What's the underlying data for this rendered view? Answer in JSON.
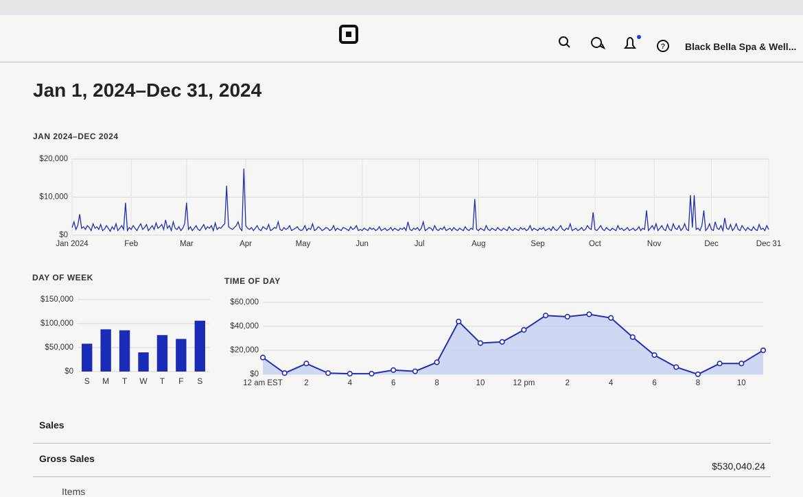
{
  "header": {
    "business": "Black Bella Spa & Well..."
  },
  "page_title": "Jan 1, 2024–Dec 31, 2024",
  "chart_data": [
    {
      "type": "line",
      "title": "JAN 2024–DEC 2024",
      "color": "#1f2fb0",
      "grid": true,
      "ylim": [
        0,
        20000
      ],
      "yticks": [
        {
          "value": 0,
          "label": "$0"
        },
        {
          "value": 10000,
          "label": "$10,000"
        },
        {
          "value": 20000,
          "label": "$20,000"
        }
      ],
      "categories": [
        "Jan 2024",
        null,
        null,
        null,
        null,
        null,
        null,
        null,
        null,
        null,
        null,
        null,
        null,
        null,
        null,
        null,
        null,
        null,
        null,
        null,
        null,
        null,
        null,
        null,
        null,
        null,
        null,
        null,
        null,
        null,
        null,
        "Feb",
        null,
        null,
        null,
        null,
        null,
        null,
        null,
        null,
        null,
        null,
        null,
        null,
        null,
        null,
        null,
        null,
        null,
        null,
        null,
        null,
        null,
        null,
        null,
        null,
        null,
        null,
        null,
        null,
        "Mar",
        null,
        null,
        null,
        null,
        null,
        null,
        null,
        null,
        null,
        null,
        null,
        null,
        null,
        null,
        null,
        null,
        null,
        null,
        null,
        null,
        null,
        null,
        null,
        null,
        null,
        null,
        null,
        null,
        null,
        null,
        "Apr",
        null,
        null,
        null,
        null,
        null,
        null,
        null,
        null,
        null,
        null,
        null,
        null,
        null,
        null,
        null,
        null,
        null,
        null,
        null,
        null,
        null,
        null,
        null,
        null,
        null,
        null,
        null,
        null,
        null,
        "May",
        null,
        null,
        null,
        null,
        null,
        null,
        null,
        null,
        null,
        null,
        null,
        null,
        null,
        null,
        null,
        null,
        null,
        null,
        null,
        null,
        null,
        null,
        null,
        null,
        null,
        null,
        null,
        null,
        null,
        null,
        "Jun",
        null,
        null,
        null,
        null,
        null,
        null,
        null,
        null,
        null,
        null,
        null,
        null,
        null,
        null,
        null,
        null,
        null,
        null,
        null,
        null,
        null,
        null,
        null,
        null,
        null,
        null,
        null,
        null,
        null,
        "Jul",
        null,
        null,
        null,
        null,
        null,
        null,
        null,
        null,
        null,
        null,
        null,
        null,
        null,
        null,
        null,
        null,
        null,
        null,
        null,
        null,
        null,
        null,
        null,
        null,
        null,
        null,
        null,
        null,
        null,
        null,
        "Aug",
        null,
        null,
        null,
        null,
        null,
        null,
        null,
        null,
        null,
        null,
        null,
        null,
        null,
        null,
        null,
        null,
        null,
        null,
        null,
        null,
        null,
        null,
        null,
        null,
        null,
        null,
        null,
        null,
        null,
        null,
        "Sep",
        null,
        null,
        null,
        null,
        null,
        null,
        null,
        null,
        null,
        null,
        null,
        null,
        null,
        null,
        null,
        null,
        null,
        null,
        null,
        null,
        null,
        null,
        null,
        null,
        null,
        null,
        null,
        null,
        null,
        "Oct",
        null,
        null,
        null,
        null,
        null,
        null,
        null,
        null,
        null,
        null,
        null,
        null,
        null,
        null,
        null,
        null,
        null,
        null,
        null,
        null,
        null,
        null,
        null,
        null,
        null,
        null,
        null,
        null,
        null,
        null,
        "Nov",
        null,
        null,
        null,
        null,
        null,
        null,
        null,
        null,
        null,
        null,
        null,
        null,
        null,
        null,
        null,
        null,
        null,
        null,
        null,
        null,
        null,
        null,
        null,
        null,
        null,
        null,
        null,
        null,
        null,
        "Dec",
        null,
        null,
        null,
        null,
        null,
        null,
        null,
        null,
        null,
        null,
        null,
        null,
        null,
        null,
        null,
        null,
        null,
        null,
        null,
        null,
        null,
        null,
        null,
        null,
        null,
        null,
        null,
        null,
        null,
        "Dec 31"
      ],
      "values": [
        2000,
        3500,
        1500,
        2500,
        5500,
        1800,
        2200,
        1500,
        2500,
        2000,
        1200,
        3000,
        1800,
        2200,
        1500,
        2800,
        1200,
        1600,
        2500,
        1800,
        1000,
        2200,
        1500,
        3000,
        1200,
        1800,
        2500,
        1500,
        8500,
        1200,
        2000,
        1500,
        2500,
        1800,
        1200,
        2200,
        3000,
        1500,
        2000,
        2800,
        1200,
        1800,
        2500,
        1500,
        3200,
        1800,
        2200,
        2800,
        1500,
        4000,
        1800,
        2500,
        1200,
        3500,
        1800,
        1500,
        2200,
        1200,
        1800,
        3000,
        8500,
        1500,
        2200,
        1200,
        1800,
        2500,
        1500,
        1200,
        2000,
        2800,
        1500,
        2200,
        1800,
        2500,
        1200,
        3200,
        1500,
        2000,
        1800,
        2500,
        3000,
        13000,
        2200,
        1800,
        1500,
        2000,
        2500,
        3500,
        1800,
        1200,
        17500,
        2500,
        1800,
        1500,
        2000,
        1200,
        1800,
        2500,
        1500,
        1200,
        2200,
        1800,
        1500,
        2800,
        1200,
        1500,
        2000,
        1800,
        3500,
        1500,
        1200,
        2000,
        1500,
        1800,
        2500,
        1200,
        1500,
        1800,
        2200,
        1500,
        1200,
        1500,
        2500,
        1200,
        1800,
        1500,
        3000,
        1200,
        1500,
        2200,
        1800,
        1200,
        1500,
        2000,
        1800,
        1200,
        1500,
        2500,
        1200,
        1800,
        1500,
        1200,
        2000,
        1800,
        1500,
        1200,
        2200,
        1500,
        1800,
        2500,
        1200,
        1500,
        1200,
        1800,
        1500,
        1200,
        2000,
        1500,
        1800,
        1200,
        1500,
        2200,
        1200,
        1500,
        1800,
        1200,
        1500,
        2000,
        1200,
        1800,
        1500,
        1200,
        1800,
        1500,
        2000,
        1200,
        3500,
        1500,
        1200,
        1800,
        1500,
        2000,
        1200,
        1800,
        3500,
        1200,
        1500,
        2000,
        1800,
        1200,
        2500,
        1500,
        1200,
        1800,
        1500,
        2200,
        1200,
        1500,
        1800,
        1200,
        2000,
        1500,
        1200,
        1800,
        1500,
        1200,
        2200,
        1500,
        1200,
        1800,
        1500,
        9500,
        1500,
        1200,
        1800,
        1500,
        1200,
        2500,
        1500,
        1200,
        1800,
        1500,
        1200,
        2000,
        1500,
        1200,
        1800,
        1500,
        1200,
        2200,
        1500,
        1200,
        1800,
        1500,
        1200,
        2000,
        1500,
        1800,
        1200,
        1500,
        2500,
        1200,
        1800,
        1500,
        1200,
        1800,
        1500,
        2000,
        1200,
        1500,
        1800,
        1200,
        2200,
        1500,
        1200,
        1800,
        2500,
        1500,
        1200,
        1800,
        1500,
        3000,
        1200,
        1500,
        1800,
        1200,
        1500,
        2000,
        1200,
        1500,
        2500,
        1800,
        1500,
        6000,
        1500,
        1200,
        1800,
        2500,
        1500,
        1200,
        2000,
        1500,
        1200,
        1800,
        1500,
        1200,
        2500,
        1500,
        1800,
        1200,
        1500,
        2000,
        1200,
        1500,
        1800,
        1200,
        1500,
        2200,
        1200,
        1800,
        1500,
        6500,
        1200,
        1800,
        2500,
        1500,
        3000,
        1200,
        1800,
        2500,
        1500,
        1200,
        2800,
        1500,
        1200,
        3000,
        1800,
        1500,
        2500,
        1200,
        1800,
        3000,
        1500,
        1200,
        10500,
        2000,
        10500,
        1500,
        1800,
        1200,
        2500,
        6500,
        1200,
        1800,
        3000,
        1500,
        1200,
        3500,
        1800,
        1500,
        2500,
        1200,
        4500,
        1800,
        1500,
        2800,
        1200,
        1800,
        3000,
        1500,
        1200,
        2500,
        1800,
        1200,
        2000,
        1500,
        1200,
        2200,
        1500,
        1200,
        2800,
        1500,
        1800,
        1200,
        2500,
        1500
      ]
    },
    {
      "type": "bar",
      "title": "DAY OF WEEK",
      "color": "#1a2bb5",
      "grid": true,
      "ylim": [
        0,
        150000
      ],
      "yticks": [
        {
          "value": 0,
          "label": "$0"
        },
        {
          "value": 50000,
          "label": "$50,000"
        },
        {
          "value": 100000,
          "label": "$100,000"
        },
        {
          "value": 150000,
          "label": "$150,000"
        }
      ],
      "categories": [
        "S",
        "M",
        "T",
        "W",
        "T",
        "F",
        "S"
      ],
      "values": [
        58000,
        88000,
        86000,
        40000,
        76000,
        68000,
        106000
      ]
    },
    {
      "type": "area",
      "title": "TIME OF DAY",
      "color": "#1f2fb0",
      "fill": "#c9d1f2",
      "markers": true,
      "grid": true,
      "ylim": [
        0,
        60000
      ],
      "yticks": [
        {
          "value": 0,
          "label": "$0"
        },
        {
          "value": 20000,
          "label": "$20,000"
        },
        {
          "value": 40000,
          "label": "$40,000"
        },
        {
          "value": 60000,
          "label": "$60,000"
        }
      ],
      "categories": [
        "12 am EST",
        null,
        "2",
        null,
        "4",
        null,
        "6",
        null,
        "8",
        null,
        "10",
        null,
        "12 pm",
        null,
        "2",
        null,
        "4",
        null,
        "6",
        null,
        "8",
        null,
        "10",
        null
      ],
      "values": [
        14000,
        1000,
        9000,
        1000,
        500,
        500,
        3500,
        2500,
        10000,
        44000,
        26000,
        27000,
        37000,
        49000,
        48000,
        50000,
        47000,
        31000,
        16000,
        6000,
        0,
        9000,
        9000,
        20000
      ]
    }
  ],
  "table": {
    "rows": [
      [
        "Sales"
      ],
      [
        "Gross Sales",
        "$530,040.24"
      ],
      [
        "Items"
      ]
    ]
  }
}
